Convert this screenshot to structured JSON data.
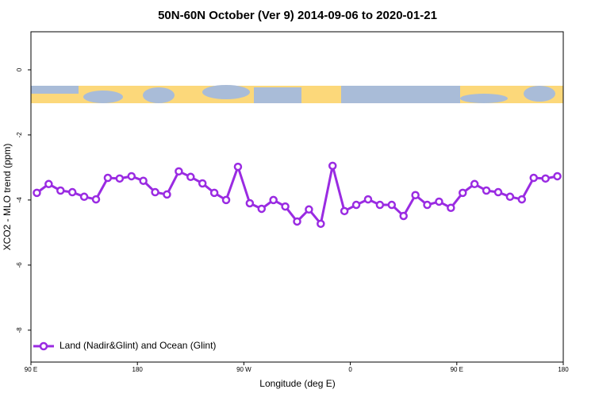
{
  "chart_data": {
    "type": "line",
    "title": "50N-60N October (Ver 9)   2014-09-06 to 2020-01-21",
    "x_label": "Longitude (deg E)",
    "y_label": "XCO2 - MLO trend (ppm)",
    "legend": "bottom-left",
    "xlim": [
      90,
      540
    ],
    "xticks": [
      {
        "value": 90,
        "label": "90 E"
      },
      180,
      {
        "value": 270,
        "label": "90 W"
      },
      {
        "value": 360,
        "label": "0"
      },
      {
        "value": 450,
        "label": "90 E"
      },
      {
        "value": 540,
        "label": "180"
      }
    ],
    "ylim": [
      -8.98,
      1.17
    ],
    "yticks": [
      0,
      -2,
      -4,
      -6,
      -8
    ],
    "x": [
      95,
      105,
      115,
      125,
      135,
      145,
      155,
      165,
      175,
      185,
      195,
      205,
      215,
      225,
      235,
      245,
      255,
      265,
      275,
      285,
      295,
      305,
      315,
      325,
      335,
      345,
      355,
      365,
      375,
      385,
      395,
      405,
      415,
      425,
      435,
      445,
      455,
      465,
      475,
      485,
      495,
      505,
      515,
      525,
      535
    ],
    "series": [
      {
        "name": "Land (Nadir&Glint) and Ocean (Glint)",
        "color": "#9a2be2",
        "values": [
          -3.78,
          -3.51,
          -3.71,
          -3.76,
          -3.9,
          -3.98,
          -3.32,
          -3.34,
          -3.27,
          -3.41,
          -3.76,
          -3.83,
          -3.12,
          -3.29,
          -3.49,
          -3.78,
          -4.0,
          -2.98,
          -4.1,
          -4.27,
          -4.0,
          -4.2,
          -4.66,
          -4.29,
          -4.73,
          -2.95,
          -4.34,
          -4.15,
          -3.98,
          -4.15,
          -4.15,
          -4.49,
          -3.85,
          -4.15,
          -4.05,
          -4.24,
          -3.78,
          -3.51,
          -3.71,
          -3.76,
          -3.9,
          -3.98,
          -3.32,
          -3.34,
          -3.27
        ]
      }
    ]
  }
}
